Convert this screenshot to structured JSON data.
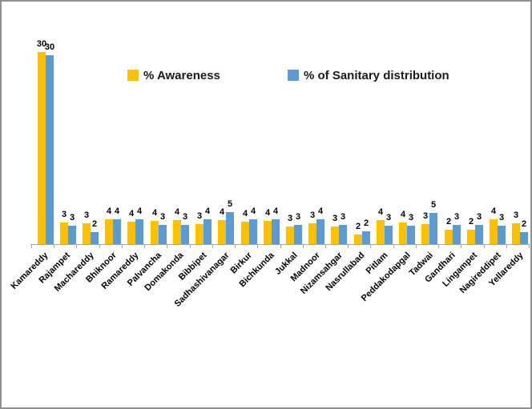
{
  "window": {
    "background_color": "#FFFFFF",
    "border_color": "#909090"
  },
  "chart_data": {
    "type": "bar",
    "title": "",
    "xlabel": "",
    "ylabel": "",
    "ylim": [
      0,
      32
    ],
    "grid": false,
    "legend_position": "top",
    "axis_color": "#A6A6A6",
    "data_label_color": "#000000",
    "categories": [
      "Kamareddy",
      "Rajampet",
      "Machareddy",
      "Bhiknoor",
      "Ramareddy",
      "Palvancha",
      "Domakonda",
      "Bibbipet",
      "Sadhashivanagar",
      "Birkur",
      "Bichkunda",
      "Jukkal",
      "Madnoor",
      "Nizamsahgar",
      "Nasrullabad",
      "Pitlam",
      "Peddakodapgal",
      "Tadwai",
      "Gandhari",
      "Lingampet",
      "Nagireddipet",
      "Yellareddy"
    ],
    "series": [
      {
        "name": "% Awareness",
        "color": "#FFC000",
        "values": [
          30,
          3,
          3,
          4,
          4,
          4,
          4,
          3,
          4,
          4,
          4,
          3,
          3,
          3,
          2,
          4,
          4,
          3,
          2,
          2,
          4,
          3
        ],
        "values_exact": [
          30.0,
          3.4,
          3.2,
          3.9,
          3.5,
          3.6,
          3.7,
          3.1,
          3.7,
          3.5,
          3.6,
          2.7,
          3.2,
          2.7,
          1.5,
          3.7,
          3.4,
          3.1,
          2.2,
          2.2,
          3.9,
          3.2
        ]
      },
      {
        "name": "% of Sanitary distribution",
        "color": "#5B9BD5",
        "values": [
          30,
          3,
          2,
          4,
          4,
          3,
          3,
          4,
          5,
          4,
          4,
          3,
          4,
          3,
          2,
          3,
          3,
          5,
          3,
          3,
          3,
          2
        ],
        "values_exact": [
          29.5,
          2.9,
          1.9,
          3.9,
          3.9,
          3.0,
          3.0,
          3.9,
          5.0,
          3.9,
          3.9,
          3.0,
          3.9,
          3.0,
          2.0,
          2.9,
          2.9,
          4.9,
          3.0,
          3.0,
          2.9,
          1.9
        ]
      }
    ]
  }
}
